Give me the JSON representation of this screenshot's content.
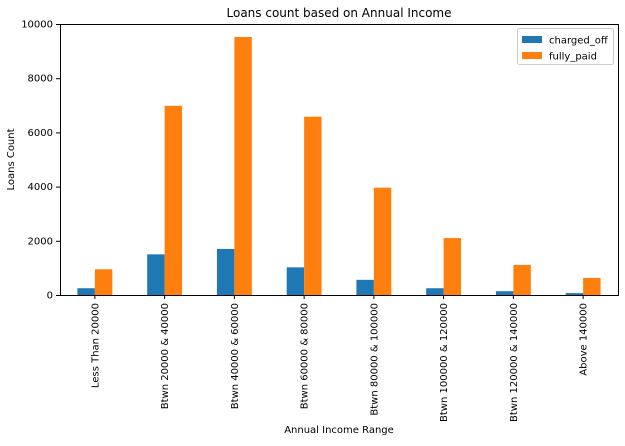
{
  "chart_data": {
    "type": "bar",
    "title": "Loans count based on Annual Income",
    "xlabel": "Annual Income Range",
    "ylabel": "Loans Count",
    "ylim": [
      0,
      10000
    ],
    "yticks": [
      0,
      2000,
      4000,
      6000,
      8000,
      10000
    ],
    "grid": false,
    "legend_position": "top-right",
    "categories": [
      "Less Than 20000",
      "Btwn 20000 & 40000",
      "Btwn 40000 & 60000",
      "Btwn 60000 & 80000",
      "Btwn 80000 & 100000",
      "Btwn 100000 & 120000",
      "Btwn 120000 & 140000",
      "Above 140000"
    ],
    "series": [
      {
        "name": "charged_off",
        "color": "#1f77b4",
        "values": [
          250,
          1500,
          1700,
          1020,
          560,
          250,
          140,
          70
        ]
      },
      {
        "name": "fully_paid",
        "color": "#ff7f0e",
        "values": [
          950,
          6980,
          9520,
          6580,
          3960,
          2100,
          1110,
          630
        ]
      }
    ]
  }
}
